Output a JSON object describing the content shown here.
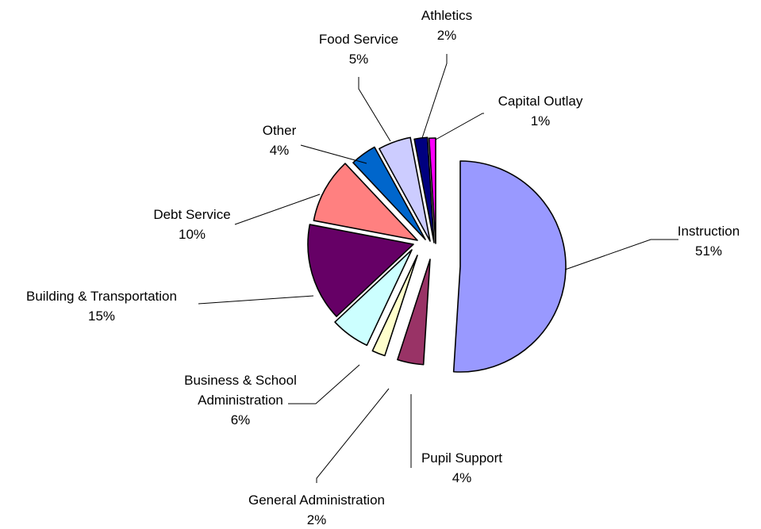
{
  "chart_data": {
    "type": "pie",
    "title": "",
    "slices": [
      {
        "label": "Instruction",
        "value": 51,
        "display": "51%",
        "color": "#9999ff"
      },
      {
        "label": "Pupil Support",
        "value": 4,
        "display": "4%",
        "color": "#993366"
      },
      {
        "label": "General Administration",
        "value": 2,
        "display": "2%",
        "color": "#ffffcc"
      },
      {
        "label": "Business & School Administration",
        "value": 6,
        "display": "6%",
        "color": "#ccffff"
      },
      {
        "label": "Building & Transportation",
        "value": 15,
        "display": "15%",
        "color": "#660066"
      },
      {
        "label": "Debt Service",
        "value": 10,
        "display": "10%",
        "color": "#ff8080"
      },
      {
        "label": "Other",
        "value": 4,
        "display": "4%",
        "color": "#0066cc"
      },
      {
        "label": "Food Service",
        "value": 5,
        "display": "5%",
        "color": "#ccccff"
      },
      {
        "label": "Athletics",
        "value": 2,
        "display": "2%",
        "color": "#000080"
      },
      {
        "label": "Capital Outlay",
        "value": 1,
        "display": "1%",
        "color": "#ff00ff"
      }
    ]
  }
}
